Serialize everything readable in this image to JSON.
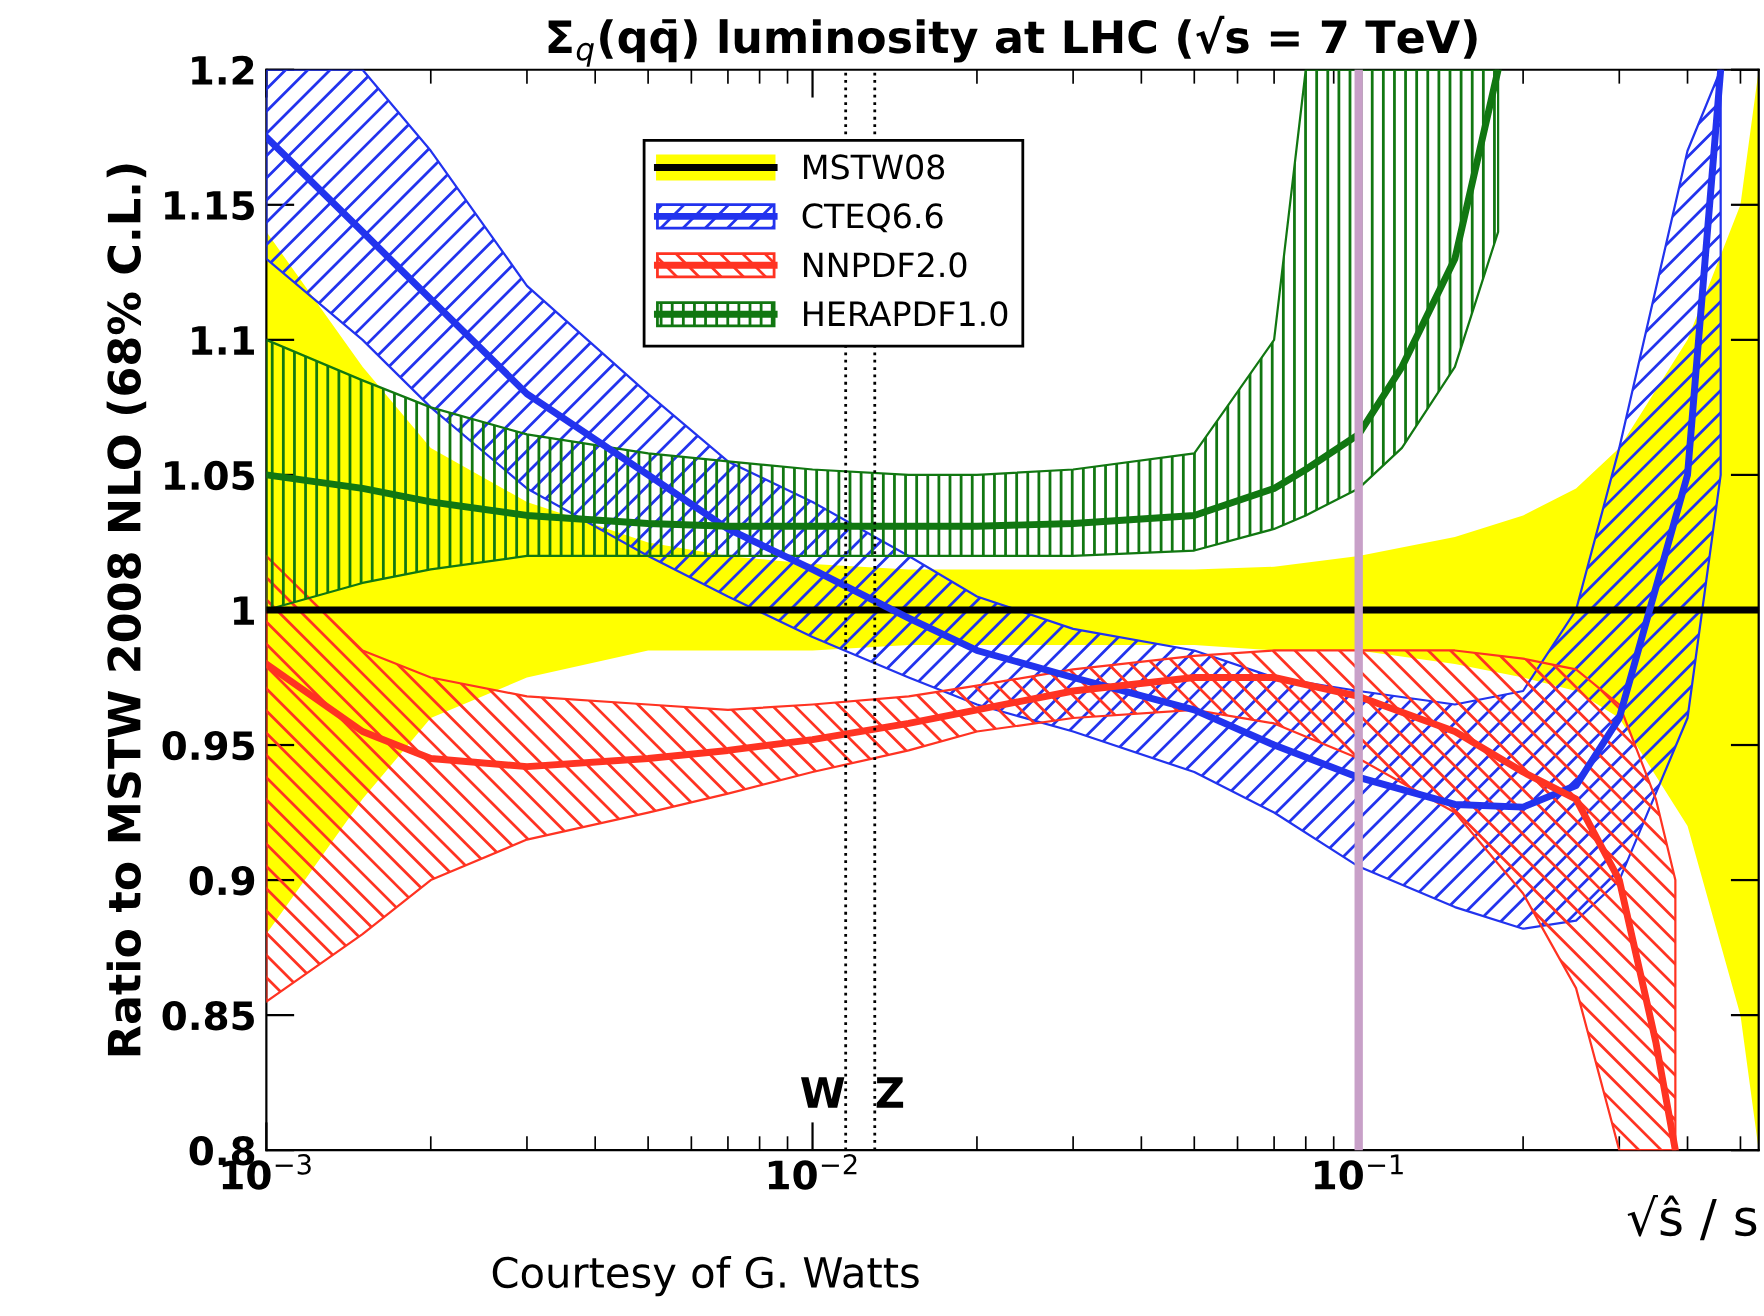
{
  "chart_data": {
    "type": "line",
    "title": "Σ$_{q}$(qq̄) luminosity at LHC (√s = 7 TeV)",
    "xlabel": "√ŝ / s",
    "ylabel": "Ratio to MSTW 2008 NLO (68% C.L.)",
    "log": "x",
    "xlim": [
      0.001,
      0.54
    ],
    "ylim": [
      0.8,
      1.2
    ],
    "xticks": [
      {
        "value": 0.001,
        "label": "10$^{−3}$"
      },
      {
        "value": 0.01,
        "label": "10$^{−2}$"
      },
      {
        "value": 0.1,
        "label": "10$^{−1}$"
      }
    ],
    "yticks": [
      0.8,
      0.85,
      0.9,
      0.95,
      1,
      1.05,
      1.1,
      1.15,
      1.2
    ],
    "grid": false,
    "legend": "top",
    "series": [
      {
        "color": "#ffff00",
        "x": [
          0.001,
          0.0015,
          0.002,
          0.003,
          0.005,
          0.007,
          0.01,
          0.015,
          0.02,
          0.03,
          0.05,
          0.07,
          0.1,
          0.15,
          0.2,
          0.25,
          0.3,
          0.4,
          0.5,
          0.54
        ],
        "values": [
          null,
          null,
          null,
          null,
          null,
          null,
          null,
          null,
          null,
          null,
          null,
          null,
          null,
          null,
          null,
          null,
          null,
          null,
          null,
          null
        ],
        "upper": [
          1.14,
          1.09,
          1.06,
          1.04,
          1.025,
          1.02,
          1.017,
          1.015,
          1.015,
          1.015,
          1.015,
          1.016,
          1.02,
          1.027,
          1.035,
          1.045,
          1.06,
          1.1,
          1.15,
          1.2
        ],
        "lower": [
          0.88,
          0.93,
          0.96,
          0.975,
          0.985,
          0.985,
          0.985,
          0.987,
          0.987,
          0.987,
          0.987,
          0.985,
          0.985,
          0.98,
          0.975,
          0.97,
          0.96,
          0.92,
          0.85,
          0.8
        ]
      },
      {
        "name": "MSTW08",
        "color": "#000000",
        "x": [
          0.001,
          0.54
        ],
        "values": [
          1,
          1
        ]
      },
      {
        "name": "CTEQ6.6",
        "color": "#2233ee",
        "x": [
          0.001,
          0.0015,
          0.002,
          0.003,
          0.005,
          0.007,
          0.01,
          0.015,
          0.02,
          0.03,
          0.05,
          0.07,
          0.1,
          0.15,
          0.2,
          0.25,
          0.3,
          0.4,
          0.46
        ],
        "values": [
          1.175,
          1.14,
          1.115,
          1.08,
          1.05,
          1.03,
          1.015,
          0.997,
          0.985,
          0.975,
          0.963,
          0.95,
          0.938,
          0.928,
          0.927,
          0.935,
          0.96,
          1.05,
          1.2
        ],
        "upper": [
          1.2,
          1.2,
          1.17,
          1.12,
          1.08,
          1.055,
          1.04,
          1.02,
          1.005,
          0.993,
          0.985,
          0.975,
          0.97,
          0.965,
          0.97,
          1.0,
          1.06,
          1.17,
          1.2
        ],
        "lower": [
          1.13,
          1.1,
          1.075,
          1.045,
          1.02,
          1.005,
          0.99,
          0.975,
          0.965,
          0.955,
          0.94,
          0.925,
          0.905,
          0.89,
          0.882,
          0.885,
          0.9,
          0.96,
          1.05
        ]
      },
      {
        "name": "NNPDF2.0",
        "color": "#ff3322",
        "x": [
          0.001,
          0.0015,
          0.002,
          0.003,
          0.005,
          0.007,
          0.01,
          0.015,
          0.02,
          0.03,
          0.05,
          0.07,
          0.1,
          0.15,
          0.2,
          0.25,
          0.3,
          0.35,
          0.38
        ],
        "values": [
          0.98,
          0.955,
          0.945,
          0.942,
          0.945,
          0.948,
          0.952,
          0.958,
          0.963,
          0.97,
          0.975,
          0.975,
          0.968,
          0.955,
          0.94,
          0.93,
          0.9,
          0.84,
          0.8
        ],
        "upper": [
          1.02,
          0.985,
          0.975,
          0.968,
          0.965,
          0.963,
          0.965,
          0.968,
          0.972,
          0.978,
          0.983,
          0.985,
          0.985,
          0.985,
          0.982,
          0.978,
          0.965,
          0.93,
          0.9
        ],
        "lower": [
          0.855,
          0.88,
          0.9,
          0.915,
          0.925,
          0.932,
          0.94,
          0.948,
          0.955,
          0.96,
          0.963,
          0.958,
          0.945,
          0.925,
          0.895,
          0.86,
          0.8,
          0.8,
          0.8
        ]
      },
      {
        "name": "HERAPDF1.0",
        "color": "#117711",
        "x": [
          0.001,
          0.0015,
          0.002,
          0.003,
          0.005,
          0.007,
          0.01,
          0.015,
          0.02,
          0.03,
          0.05,
          0.07,
          0.08,
          0.1,
          0.12,
          0.15,
          0.18
        ],
        "values": [
          1.05,
          1.045,
          1.04,
          1.035,
          1.032,
          1.031,
          1.031,
          1.031,
          1.031,
          1.032,
          1.035,
          1.045,
          1.052,
          1.065,
          1.09,
          1.13,
          1.2
        ],
        "upper": [
          1.1,
          1.085,
          1.075,
          1.065,
          1.058,
          1.055,
          1.052,
          1.05,
          1.05,
          1.052,
          1.058,
          1.1,
          1.2,
          1.2,
          1.2,
          1.2,
          1.2
        ],
        "lower": [
          1.0,
          1.01,
          1.015,
          1.02,
          1.02,
          1.02,
          1.02,
          1.02,
          1.02,
          1.02,
          1.022,
          1.03,
          1.035,
          1.045,
          1.06,
          1.09,
          1.14
        ]
      }
    ],
    "ref_lines": [
      {
        "axis": "x",
        "value": 0.0115,
        "label": "W",
        "color": "#000000",
        "line_style": "dotted"
      },
      {
        "axis": "x",
        "value": 0.013,
        "label": "Z",
        "color": "#000000",
        "line_style": "dotted"
      },
      {
        "axis": "x",
        "value": 0.1,
        "color": "#c8a0c8",
        "line_style": "solid"
      }
    ],
    "annotations": [
      "Courtesy of G. Watts"
    ]
  }
}
